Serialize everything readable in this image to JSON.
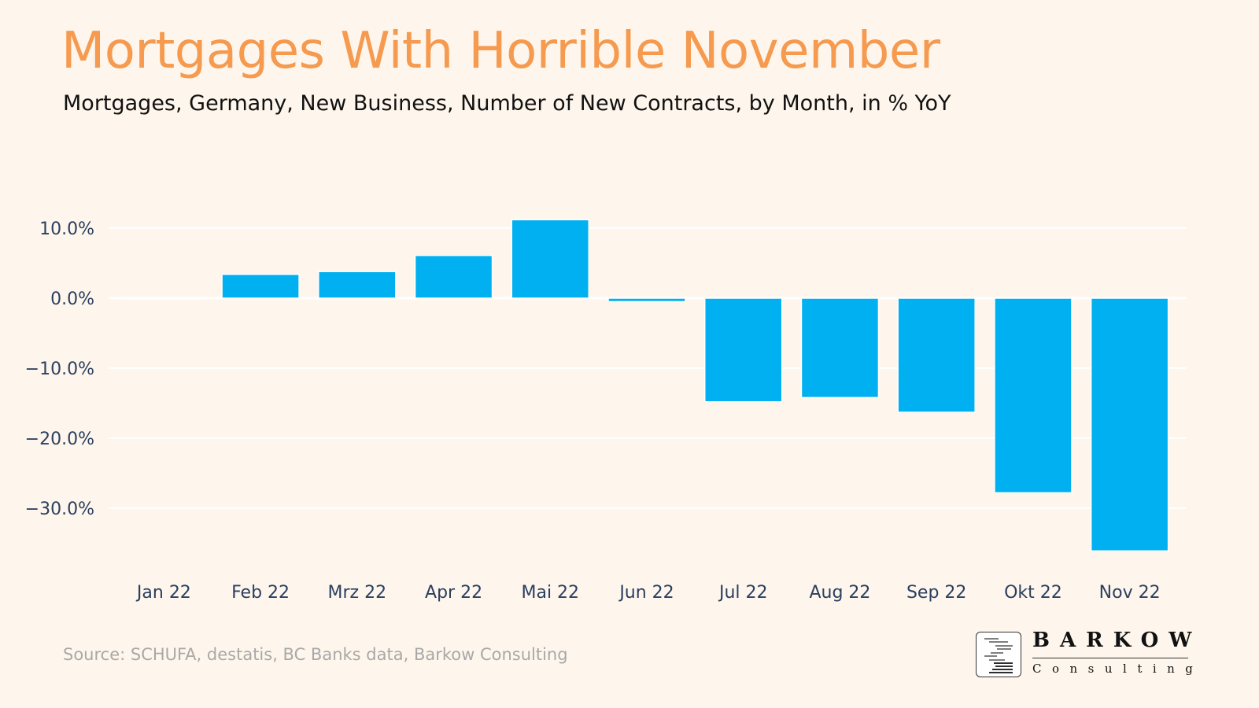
{
  "title": "Mortgages With Horrible November",
  "subtitle": "Mortgages, Germany, New Business, Number of New Contracts, by Month, in % YoY",
  "source": "Source: SCHUFA, destatis, BC Banks data, Barkow Consulting",
  "logo": {
    "name": "BARKOW",
    "sub": "Consulting"
  },
  "chart_data": {
    "type": "bar",
    "categories": [
      "Jan 22",
      "Feb 22",
      "Mrz 22",
      "Apr 22",
      "Mai 22",
      "Jun 22",
      "Jul 22",
      "Aug 22",
      "Sep 22",
      "Okt 22",
      "Nov 22"
    ],
    "values": [
      -0.1,
      3.4,
      3.8,
      6.1,
      11.2,
      -0.5,
      -14.8,
      -14.2,
      -16.3,
      -27.8,
      -36.1
    ],
    "yticks": [
      10,
      0,
      -10,
      -20,
      -30
    ],
    "ytick_labels": [
      "10.0%",
      "0.0%",
      "−10.0%",
      "−20.0%",
      "−30.0%"
    ],
    "ylim": [
      -40,
      18
    ],
    "grid": true,
    "bar_color": "#00b0f0",
    "title": "Mortgages With Horrible November",
    "xlabel": "",
    "ylabel": ""
  }
}
